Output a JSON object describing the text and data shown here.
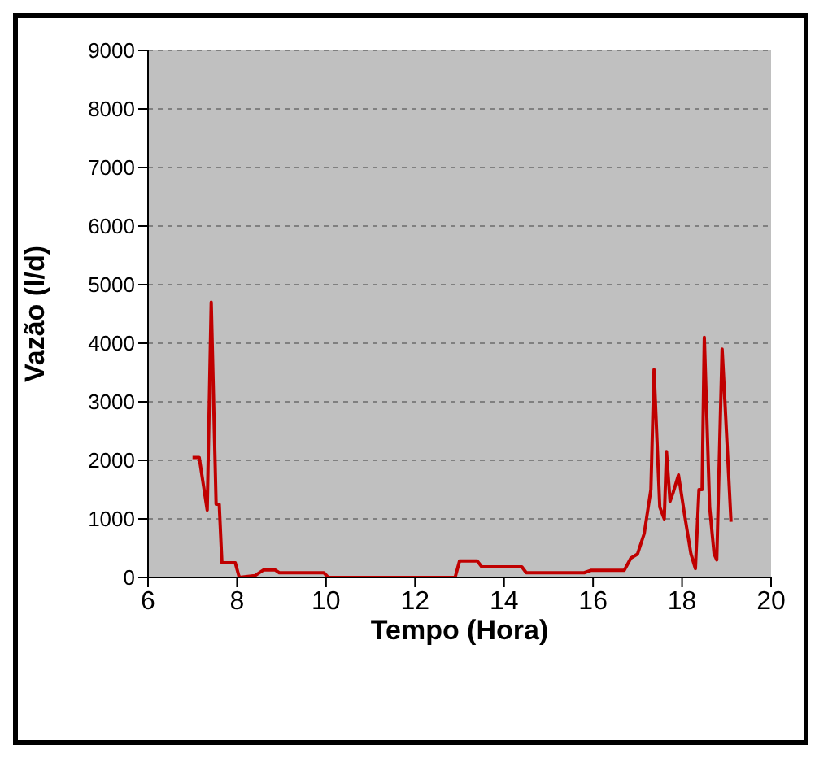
{
  "chart_data": {
    "type": "line",
    "xlabel": "Tempo (Hora)",
    "ylabel": "Vazão (l/d)",
    "x": [
      7.0,
      7.15,
      7.33,
      7.42,
      7.53,
      7.6,
      7.66,
      7.96,
      8.05,
      8.4,
      8.6,
      8.85,
      8.95,
      9.95,
      10.05,
      12.9,
      13.0,
      13.4,
      13.5,
      14.4,
      14.5,
      15.8,
      15.95,
      16.7,
      16.85,
      17.0,
      17.15,
      17.3,
      17.37,
      17.5,
      17.6,
      17.65,
      17.73,
      17.8,
      17.92,
      18.05,
      18.2,
      18.3,
      18.38,
      18.45,
      18.5,
      18.62,
      18.72,
      18.78,
      18.9,
      18.97,
      19.1
    ],
    "series": [
      {
        "color": "#c00000",
        "values": [
          2050,
          2050,
          1150,
          4700,
          1250,
          1250,
          250,
          250,
          0,
          30,
          130,
          130,
          80,
          80,
          0,
          0,
          280,
          280,
          180,
          180,
          80,
          80,
          120,
          120,
          330,
          400,
          750,
          1500,
          3550,
          1200,
          1000,
          2150,
          1300,
          1450,
          1750,
          1100,
          400,
          150,
          1500,
          1500,
          4100,
          1200,
          400,
          300,
          3900,
          2900,
          950
        ]
      }
    ],
    "xlim": [
      6,
      20
    ],
    "xticks": [
      6,
      8,
      10,
      12,
      14,
      16,
      18,
      20
    ],
    "ylim": [
      0,
      9000
    ],
    "yticks": [
      0,
      1000,
      2000,
      3000,
      4000,
      5000,
      6000,
      7000,
      8000,
      9000
    ],
    "grid": "y",
    "legend": false,
    "marker": "none",
    "line_style": "solid"
  }
}
